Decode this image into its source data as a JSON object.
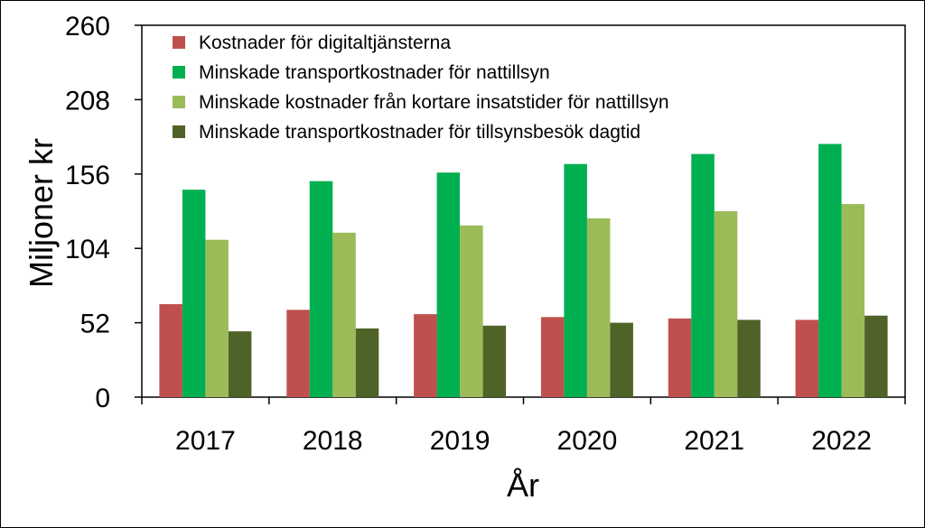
{
  "chart_data": {
    "type": "bar",
    "categories": [
      "2017",
      "2018",
      "2019",
      "2020",
      "2021",
      "2022"
    ],
    "series": [
      {
        "name": "Kostnader för digitaltjänsterna",
        "color": "#c0504d",
        "values": [
          65,
          61,
          58,
          56,
          55,
          54
        ]
      },
      {
        "name": "Minskade transportkostnader för nattillsyn",
        "color": "#00b050",
        "values": [
          145,
          151,
          157,
          163,
          170,
          177
        ]
      },
      {
        "name": "Minskade kostnader från kortare insatstider för nattillsyn",
        "color": "#9bbb59",
        "values": [
          110,
          115,
          120,
          125,
          130,
          135
        ]
      },
      {
        "name": "Minskade transportkostnader för tillsynsbesök dagtid",
        "color": "#4f6228",
        "values": [
          46,
          48,
          50,
          52,
          54,
          57
        ]
      }
    ],
    "yticks": [
      "0",
      "52",
      "104",
      "156",
      "208",
      "260"
    ],
    "ylim": [
      0,
      260
    ],
    "xlabel": "År",
    "ylabel": "Miljoner kr",
    "legend": "top-left inside plot",
    "grid": false
  }
}
